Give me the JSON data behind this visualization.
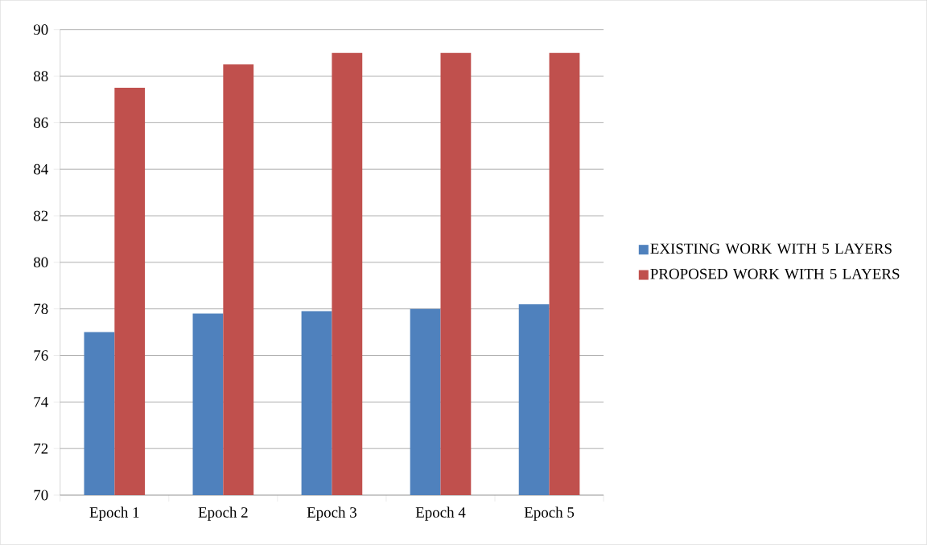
{
  "chart_data": {
    "type": "bar",
    "categories": [
      "Epoch 1",
      "Epoch 2",
      "Epoch 3",
      "Epoch 4",
      "Epoch 5"
    ],
    "series": [
      {
        "name": "EXISTING WORK WITH 5 LAYERS",
        "color": "#4f81bd",
        "values": [
          77,
          77.8,
          77.9,
          78,
          78.2
        ]
      },
      {
        "name": "PROPOSED WORK WITH 5 LAYERS",
        "color": "#c0504d",
        "values": [
          87.5,
          88.5,
          89,
          89,
          89
        ]
      }
    ],
    "ylim": [
      70,
      90
    ],
    "yticks": [
      70,
      72,
      74,
      76,
      78,
      80,
      82,
      84,
      86,
      88,
      90
    ],
    "grid": "y",
    "legend": "right"
  }
}
